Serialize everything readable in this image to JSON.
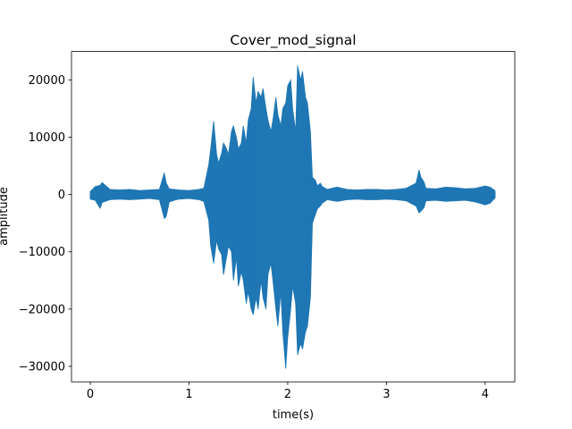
{
  "chart_data": {
    "type": "line",
    "title": "Cover_mod_signal",
    "xlabel": "time(s)",
    "ylabel": "amplitude",
    "xlim": [
      -0.19,
      4.3
    ],
    "ylim": [
      -32700,
      24980
    ],
    "xticks": [
      0,
      1,
      2,
      3,
      4
    ],
    "xtick_labels": [
      "0",
      "1",
      "2",
      "3",
      "4"
    ],
    "yticks": [
      -30000,
      -20000,
      -10000,
      0,
      10000,
      20000
    ],
    "ytick_labels": [
      "−30000",
      "−20000",
      "−10000",
      "0",
      "10000",
      "20000"
    ],
    "grid": false,
    "color": "#1f77b4",
    "series": [
      {
        "x": [
          0.0,
          0.05,
          0.1,
          0.12,
          0.2,
          0.3,
          0.4,
          0.5,
          0.6,
          0.7,
          0.75,
          0.77,
          0.8,
          0.85,
          0.9,
          1.0,
          1.1,
          1.15,
          1.2,
          1.22,
          1.25,
          1.28,
          1.3,
          1.33,
          1.35,
          1.38,
          1.4,
          1.43,
          1.45,
          1.48,
          1.5,
          1.53,
          1.55,
          1.58,
          1.6,
          1.63,
          1.65,
          1.68,
          1.7,
          1.73,
          1.75,
          1.78,
          1.8,
          1.83,
          1.85,
          1.88,
          1.9,
          1.93,
          1.95,
          1.98,
          2.0,
          2.03,
          2.05,
          2.08,
          2.1,
          2.13,
          2.15,
          2.18,
          2.2,
          2.23,
          2.25,
          2.28,
          2.3,
          2.33,
          2.35,
          2.4,
          2.5,
          2.6,
          2.7,
          2.8,
          2.9,
          3.0,
          3.1,
          3.2,
          3.3,
          3.33,
          3.35,
          3.38,
          3.4,
          3.5,
          3.6,
          3.7,
          3.8,
          3.9,
          4.0,
          4.05,
          4.1
        ],
        "max": [
          500,
          1400,
          1600,
          2100,
          900,
          800,
          900,
          700,
          800,
          900,
          3800,
          2000,
          1000,
          900,
          800,
          700,
          900,
          1100,
          5200,
          8000,
          12800,
          7000,
          5500,
          7200,
          9000,
          8000,
          7000,
          11000,
          12000,
          10000,
          8000,
          9000,
          12000,
          9000,
          13000,
          15000,
          20500,
          16000,
          18000,
          17000,
          18500,
          15000,
          13000,
          11000,
          13000,
          17000,
          14000,
          12000,
          15000,
          16000,
          19000,
          20000,
          15000,
          11000,
          22500,
          20000,
          21500,
          17000,
          16000,
          11000,
          3000,
          2500,
          1500,
          2000,
          1400,
          900,
          1300,
          900,
          800,
          900,
          900,
          800,
          900,
          1100,
          2000,
          4300,
          3000,
          2200,
          1100,
          1000,
          1300,
          1200,
          1000,
          1100,
          1500,
          1300,
          700
        ],
        "min": [
          -800,
          -1000,
          -2400,
          -1400,
          -900,
          -800,
          -900,
          -800,
          -700,
          -900,
          -4200,
          -3800,
          -1300,
          -1000,
          -800,
          -700,
          -900,
          -1200,
          -4500,
          -9000,
          -12000,
          -8000,
          -9500,
          -10500,
          -14000,
          -11000,
          -9000,
          -10000,
          -15000,
          -11000,
          -16000,
          -13500,
          -15000,
          -19000,
          -17000,
          -20000,
          -21000,
          -18000,
          -20000,
          -15000,
          -18000,
          -20000,
          -14000,
          -12000,
          -15000,
          -20000,
          -23000,
          -17000,
          -24000,
          -30400,
          -25000,
          -20000,
          -16000,
          -19000,
          -28000,
          -26000,
          -27000,
          -24000,
          -23000,
          -18000,
          -5000,
          -3500,
          -2500,
          -2000,
          -1500,
          -900,
          -1200,
          -900,
          -800,
          -900,
          -900,
          -800,
          -900,
          -1100,
          -2000,
          -3200,
          -2900,
          -2300,
          -1100,
          -1000,
          -1200,
          -1100,
          -1000,
          -1300,
          -1800,
          -1500,
          -600
        ]
      }
    ]
  }
}
